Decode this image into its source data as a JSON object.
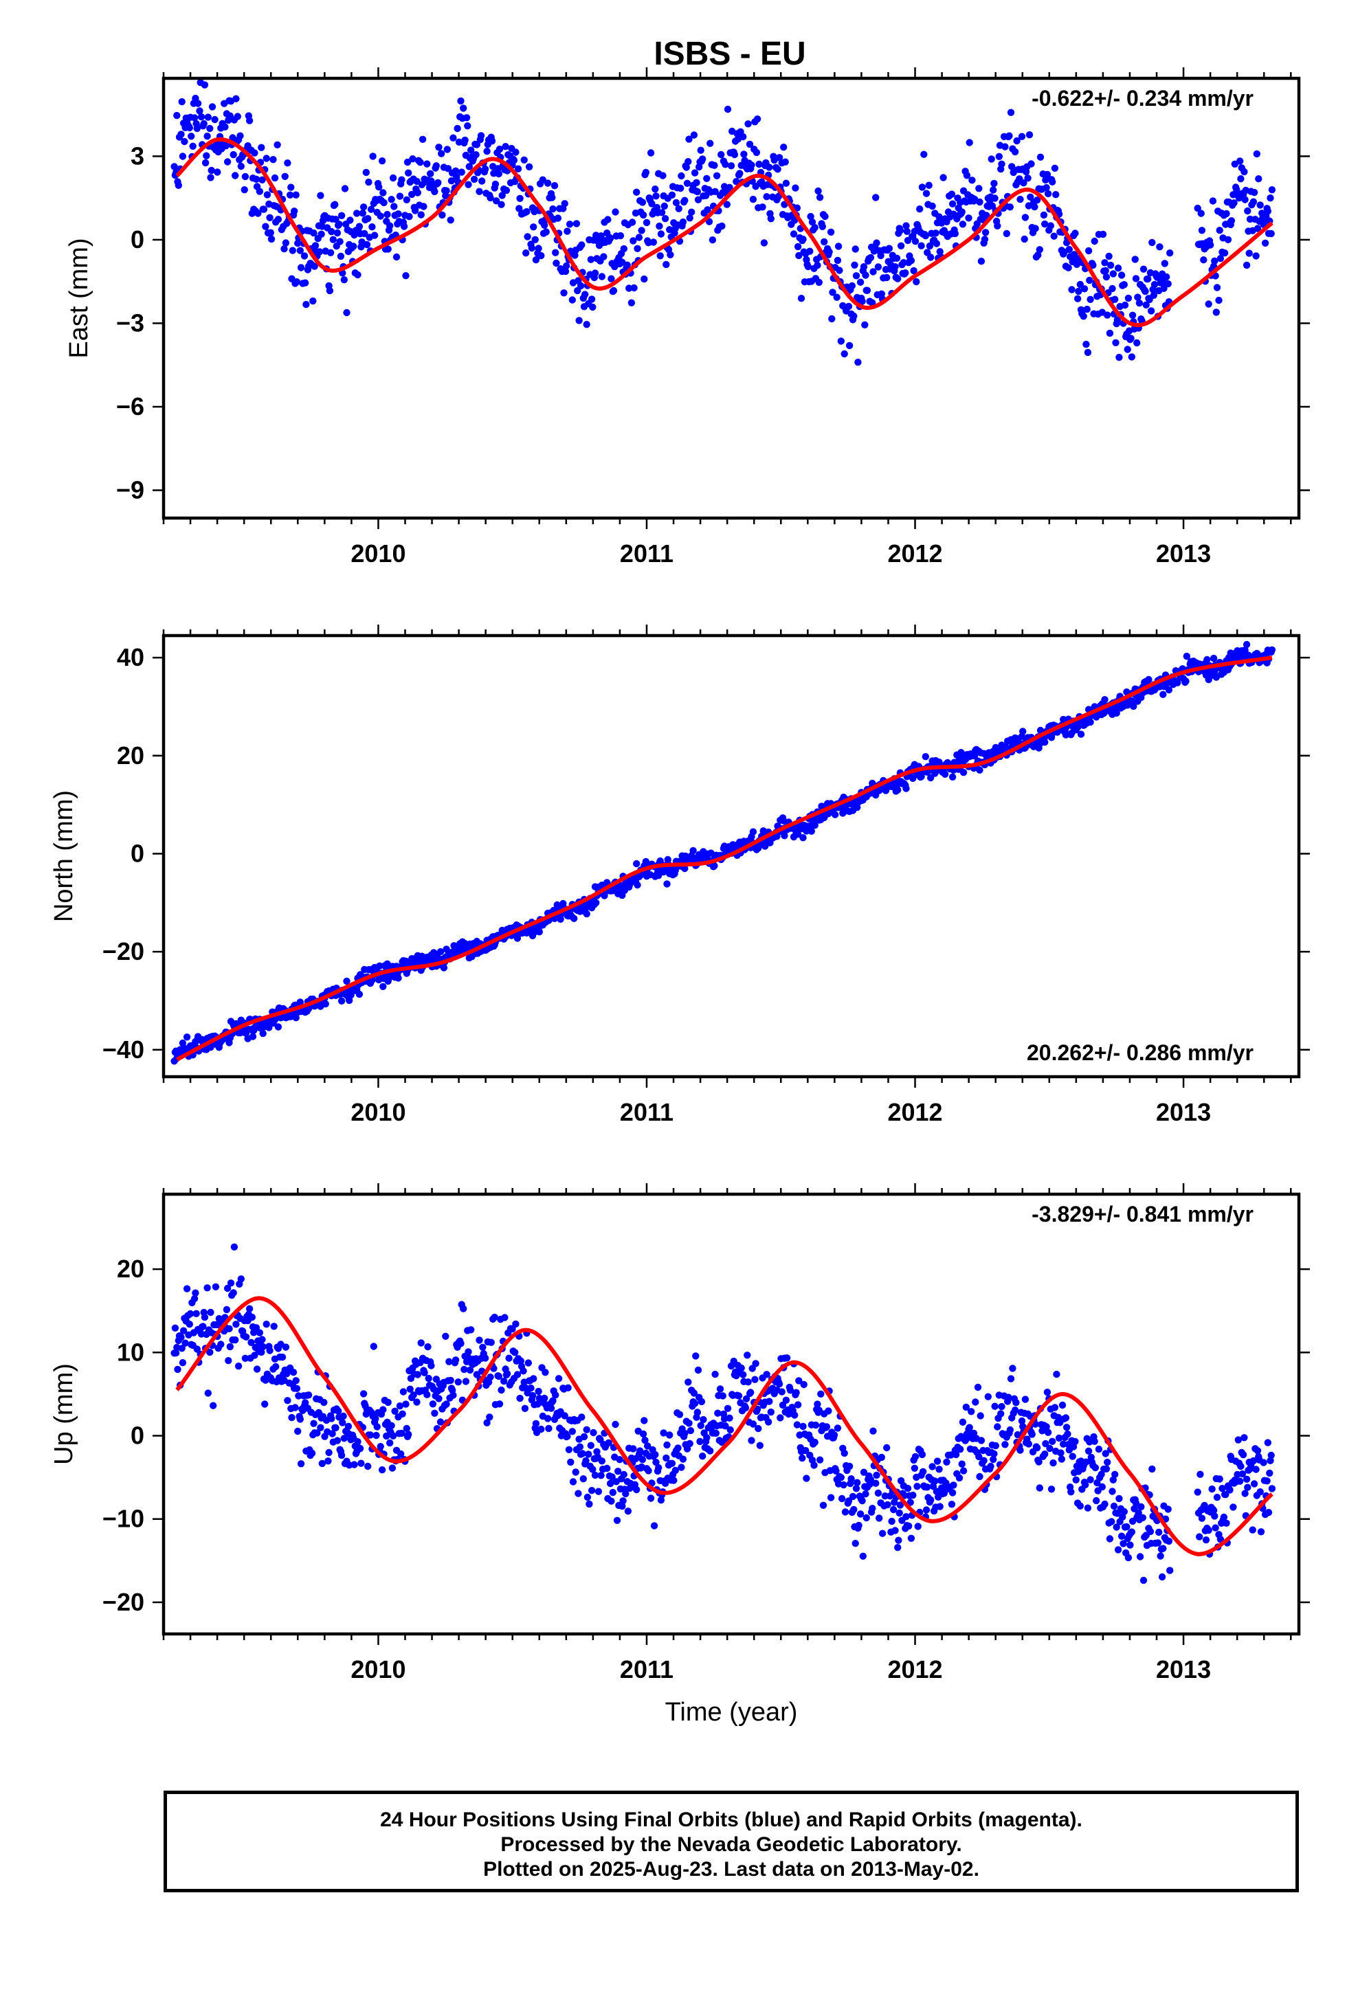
{
  "title": "ISBS - EU",
  "colors": {
    "final_orbits": "#0000ff",
    "fit_line": "#ff0000",
    "axis": "#000000"
  },
  "footer": {
    "line1": "24 Hour Positions Using Final Orbits (blue) and Rapid Orbits (magenta).",
    "line2": "Processed by the Nevada Geodetic Laboratory.",
    "line3": "Plotted on 2025-Aug-23. Last data on 2013-May-02."
  },
  "chart_data": [
    {
      "type": "scatter",
      "component": "east",
      "ylabel": "East (mm)",
      "xlabel": "",
      "rate_text": "-0.622+/- 0.234 mm/yr",
      "rate_position": "top-right",
      "xlim": [
        2009.2,
        2013.43
      ],
      "ylim": [
        -10.0,
        5.8
      ],
      "x_ticks": [
        2010,
        2011,
        2012,
        2013
      ],
      "y_ticks": [
        3,
        0,
        -3,
        -6,
        -9
      ],
      "x_tick_labels": [
        "2010",
        "2011",
        "2012",
        "2013"
      ],
      "y_tick_labels": [
        "3",
        "0",
        "−3",
        "−6",
        "−9"
      ],
      "grid": false,
      "model": {
        "x_start": 2009.24,
        "x_end": 2013.33,
        "offset": 2.5,
        "trend": -0.622,
        "annual_cos": -0.2,
        "annual_sin": 2.2,
        "semi_cos": 0.4,
        "semi_sin": -0.3
      },
      "scatter": {
        "x_start": 2009.24,
        "x_end": 2013.33,
        "n": 1300,
        "noise": 0.85,
        "gaps": [
          [
            2012.95,
            2013.05
          ]
        ]
      },
      "fit_line": [
        [
          2009.25,
          2.3
        ],
        [
          2009.4,
          3.6
        ],
        [
          2009.55,
          2.7
        ],
        [
          2009.7,
          0.3
        ],
        [
          2009.82,
          -1.1
        ],
        [
          2010.0,
          -0.3
        ],
        [
          2010.2,
          0.8
        ],
        [
          2010.42,
          2.9
        ],
        [
          2010.6,
          1.2
        ],
        [
          2010.8,
          -1.7
        ],
        [
          2011.0,
          -0.6
        ],
        [
          2011.2,
          0.6
        ],
        [
          2011.42,
          2.3
        ],
        [
          2011.6,
          0.3
        ],
        [
          2011.8,
          -2.4
        ],
        [
          2012.0,
          -1.3
        ],
        [
          2012.2,
          0.0
        ],
        [
          2012.42,
          1.8
        ],
        [
          2012.6,
          -0.3
        ],
        [
          2012.8,
          -3.0
        ],
        [
          2013.0,
          -2.0
        ],
        [
          2013.33,
          0.6
        ]
      ]
    },
    {
      "type": "scatter",
      "component": "north",
      "ylabel": "North (mm)",
      "xlabel": "",
      "rate_text": "20.262+/- 0.286 mm/yr",
      "rate_position": "bottom-right",
      "xlim": [
        2009.2,
        2013.43
      ],
      "ylim": [
        -45.5,
        44.5
      ],
      "x_ticks": [
        2010,
        2011,
        2012,
        2013
      ],
      "y_ticks": [
        40,
        20,
        0,
        -20,
        -40
      ],
      "x_tick_labels": [
        "2010",
        "2011",
        "2012",
        "2013"
      ],
      "y_tick_labels": [
        "40",
        "20",
        "0",
        "−20",
        "−40"
      ],
      "grid": false,
      "model": {
        "x_start": 2009.24,
        "x_end": 2013.33,
        "offset": -41.0,
        "trend": 20.262,
        "annual_cos": 1.0,
        "annual_sin": 0.5,
        "semi_cos": 0.0,
        "semi_sin": 0.0
      },
      "scatter": {
        "x_start": 2009.24,
        "x_end": 2013.33,
        "n": 1300,
        "noise": 0.9,
        "gaps": []
      },
      "fit_line": [
        [
          2009.25,
          -42.0
        ],
        [
          2009.5,
          -35.0
        ],
        [
          2009.75,
          -30.5
        ],
        [
          2010.0,
          -24.5
        ],
        [
          2010.25,
          -22.0
        ],
        [
          2010.5,
          -16.0
        ],
        [
          2010.75,
          -10.0
        ],
        [
          2011.0,
          -3.0
        ],
        [
          2011.25,
          -1.5
        ],
        [
          2011.5,
          5.0
        ],
        [
          2011.75,
          11.0
        ],
        [
          2012.0,
          17.0
        ],
        [
          2012.25,
          18.5
        ],
        [
          2012.5,
          25.0
        ],
        [
          2012.75,
          31.0
        ],
        [
          2013.0,
          37.0
        ],
        [
          2013.33,
          40.0
        ]
      ]
    },
    {
      "type": "scatter",
      "component": "up",
      "ylabel": "Up (mm)",
      "xlabel": "Time (year)",
      "rate_text": "-3.829+/- 0.841 mm/yr",
      "rate_position": "top-right",
      "xlim": [
        2009.2,
        2013.43
      ],
      "ylim": [
        -23.8,
        29.0
      ],
      "x_ticks": [
        2010,
        2011,
        2012,
        2013
      ],
      "y_ticks": [
        20,
        10,
        0,
        -10,
        -20
      ],
      "x_tick_labels": [
        "2010",
        "2011",
        "2012",
        "2013"
      ],
      "y_tick_labels": [
        "20",
        "10",
        "0",
        "−10",
        "−20"
      ],
      "grid": false,
      "model": {
        "x_start": 2009.24,
        "x_end": 2013.33,
        "offset": 7.3,
        "trend": -3.829,
        "annual_cos": -3.5,
        "annual_sin": 9.0,
        "semi_cos": 0.0,
        "semi_sin": 0.0
      },
      "scatter": {
        "x_start": 2009.24,
        "x_end": 2013.33,
        "n": 1300,
        "noise": 2.6,
        "gaps": [
          [
            2012.95,
            2013.05
          ]
        ]
      },
      "fit_line": [
        [
          2009.25,
          5.5
        ],
        [
          2009.55,
          16.5
        ],
        [
          2009.8,
          7.0
        ],
        [
          2010.05,
          -3.0
        ],
        [
          2010.3,
          3.0
        ],
        [
          2010.55,
          12.7
        ],
        [
          2010.8,
          3.0
        ],
        [
          2011.05,
          -6.8
        ],
        [
          2011.3,
          -1.0
        ],
        [
          2011.55,
          8.8
        ],
        [
          2011.8,
          -1.0
        ],
        [
          2012.05,
          -10.2
        ],
        [
          2012.3,
          -4.5
        ],
        [
          2012.55,
          5.0
        ],
        [
          2012.8,
          -4.5
        ],
        [
          2013.05,
          -14.2
        ],
        [
          2013.33,
          -7.0
        ]
      ]
    }
  ]
}
